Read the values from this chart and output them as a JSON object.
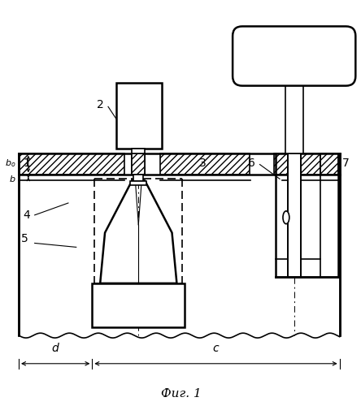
{
  "fig_width": 4.44,
  "fig_height": 5.0,
  "dpi": 100,
  "title": "Фиг. 1"
}
